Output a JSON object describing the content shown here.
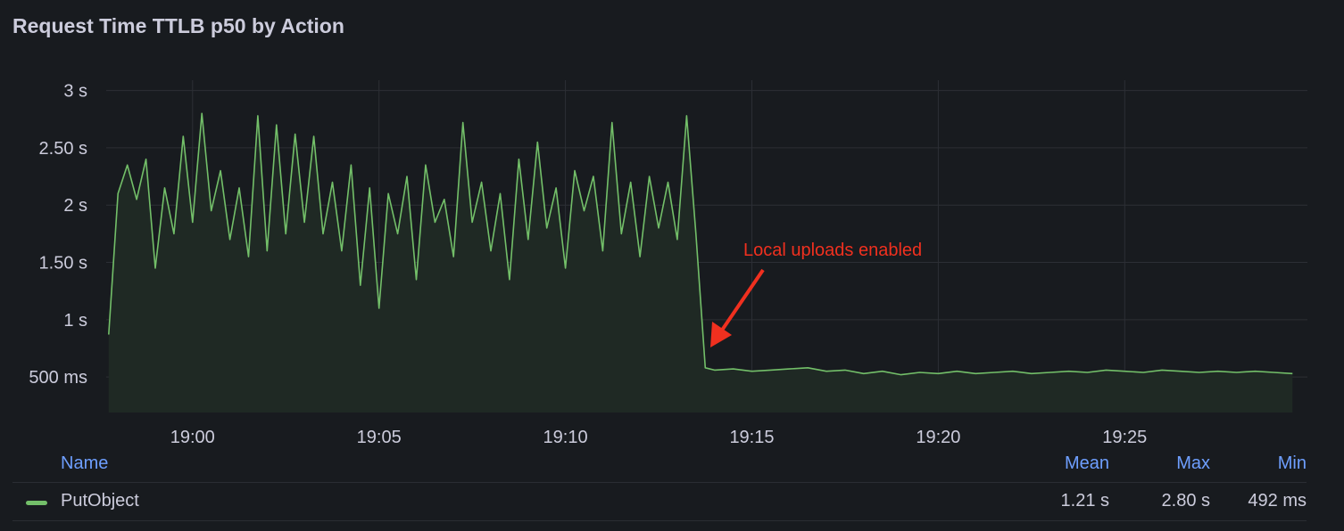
{
  "panel": {
    "title": "Request Time TTLB p50 by Action"
  },
  "colors": {
    "series": "#73bf69",
    "fill": "#1f2924",
    "grid": "#2c2f35",
    "annotation": "#f0301f",
    "legend_header": "#6e9fff",
    "background": "#181b1f"
  },
  "chart_data": {
    "type": "line",
    "title": "Request Time TTLB p50 by Action",
    "xlabel": "",
    "ylabel": "",
    "x_ticks": [
      "19:00",
      "19:05",
      "19:10",
      "19:15",
      "19:20",
      "19:25"
    ],
    "y_ticks": [
      {
        "value": 3,
        "label": "3 s"
      },
      {
        "value": 2.5,
        "label": "2.50 s"
      },
      {
        "value": 2,
        "label": "2 s"
      },
      {
        "value": 1.5,
        "label": "1.50 s"
      },
      {
        "value": 1,
        "label": "1 s"
      },
      {
        "value": 0.5,
        "label": "500 ms"
      }
    ],
    "xlim": [
      "18:57:41",
      "19:29:54"
    ],
    "ylim": [
      0.19,
      3.09
    ],
    "y_unit": "s",
    "grid": true,
    "legend": "bottom",
    "annotation": {
      "text": "Local uploads enabled",
      "time": "19:13:45"
    },
    "series": [
      {
        "name": "PutObject",
        "points": [
          [
            "18:57:45",
            0.87
          ],
          [
            "18:58:00",
            2.1
          ],
          [
            "18:58:15",
            2.35
          ],
          [
            "18:58:30",
            2.05
          ],
          [
            "18:58:45",
            2.4
          ],
          [
            "18:59:00",
            1.45
          ],
          [
            "18:59:15",
            2.15
          ],
          [
            "18:59:30",
            1.75
          ],
          [
            "18:59:45",
            2.6
          ],
          [
            "19:00:00",
            1.85
          ],
          [
            "19:00:15",
            2.8
          ],
          [
            "19:00:30",
            1.95
          ],
          [
            "19:00:45",
            2.3
          ],
          [
            "19:01:00",
            1.7
          ],
          [
            "19:01:15",
            2.15
          ],
          [
            "19:01:30",
            1.55
          ],
          [
            "19:01:45",
            2.78
          ],
          [
            "19:02:00",
            1.6
          ],
          [
            "19:02:15",
            2.7
          ],
          [
            "19:02:30",
            1.75
          ],
          [
            "19:02:45",
            2.62
          ],
          [
            "19:03:00",
            1.85
          ],
          [
            "19:03:15",
            2.6
          ],
          [
            "19:03:30",
            1.75
          ],
          [
            "19:03:45",
            2.2
          ],
          [
            "19:04:00",
            1.6
          ],
          [
            "19:04:15",
            2.35
          ],
          [
            "19:04:30",
            1.3
          ],
          [
            "19:04:45",
            2.15
          ],
          [
            "19:05:00",
            1.1
          ],
          [
            "19:05:15",
            2.1
          ],
          [
            "19:05:30",
            1.75
          ],
          [
            "19:05:45",
            2.25
          ],
          [
            "19:06:00",
            1.35
          ],
          [
            "19:06:15",
            2.35
          ],
          [
            "19:06:30",
            1.85
          ],
          [
            "19:06:45",
            2.05
          ],
          [
            "19:07:00",
            1.55
          ],
          [
            "19:07:15",
            2.72
          ],
          [
            "19:07:30",
            1.85
          ],
          [
            "19:07:45",
            2.2
          ],
          [
            "19:08:00",
            1.6
          ],
          [
            "19:08:15",
            2.1
          ],
          [
            "19:08:30",
            1.35
          ],
          [
            "19:08:45",
            2.4
          ],
          [
            "19:09:00",
            1.7
          ],
          [
            "19:09:15",
            2.55
          ],
          [
            "19:09:30",
            1.8
          ],
          [
            "19:09:45",
            2.15
          ],
          [
            "19:10:00",
            1.45
          ],
          [
            "19:10:15",
            2.3
          ],
          [
            "19:10:30",
            1.95
          ],
          [
            "19:10:45",
            2.25
          ],
          [
            "19:11:00",
            1.6
          ],
          [
            "19:11:15",
            2.72
          ],
          [
            "19:11:30",
            1.75
          ],
          [
            "19:11:45",
            2.2
          ],
          [
            "19:12:00",
            1.55
          ],
          [
            "19:12:15",
            2.25
          ],
          [
            "19:12:30",
            1.8
          ],
          [
            "19:12:45",
            2.2
          ],
          [
            "19:13:00",
            1.7
          ],
          [
            "19:13:15",
            2.78
          ],
          [
            "19:13:30",
            1.75
          ],
          [
            "19:13:45",
            0.58
          ],
          [
            "19:14:00",
            0.56
          ],
          [
            "19:14:30",
            0.57
          ],
          [
            "19:15:00",
            0.55
          ],
          [
            "19:15:30",
            0.56
          ],
          [
            "19:16:00",
            0.57
          ],
          [
            "19:16:30",
            0.58
          ],
          [
            "19:17:00",
            0.55
          ],
          [
            "19:17:30",
            0.56
          ],
          [
            "19:18:00",
            0.53
          ],
          [
            "19:18:30",
            0.55
          ],
          [
            "19:19:00",
            0.52
          ],
          [
            "19:19:30",
            0.54
          ],
          [
            "19:20:00",
            0.53
          ],
          [
            "19:20:30",
            0.55
          ],
          [
            "19:21:00",
            0.53
          ],
          [
            "19:21:30",
            0.54
          ],
          [
            "19:22:00",
            0.55
          ],
          [
            "19:22:30",
            0.53
          ],
          [
            "19:23:00",
            0.54
          ],
          [
            "19:23:30",
            0.55
          ],
          [
            "19:24:00",
            0.54
          ],
          [
            "19:24:30",
            0.56
          ],
          [
            "19:25:00",
            0.55
          ],
          [
            "19:25:30",
            0.54
          ],
          [
            "19:26:00",
            0.56
          ],
          [
            "19:26:30",
            0.55
          ],
          [
            "19:27:00",
            0.54
          ],
          [
            "19:27:30",
            0.55
          ],
          [
            "19:28:00",
            0.54
          ],
          [
            "19:28:30",
            0.55
          ],
          [
            "19:29:00",
            0.54
          ],
          [
            "19:29:30",
            0.53
          ]
        ]
      }
    ]
  },
  "legend": {
    "headers": {
      "name": "Name",
      "mean": "Mean",
      "max": "Max",
      "min": "Min"
    },
    "rows": [
      {
        "name": "PutObject",
        "mean": "1.21 s",
        "max": "2.80 s",
        "min": "492 ms"
      }
    ]
  }
}
